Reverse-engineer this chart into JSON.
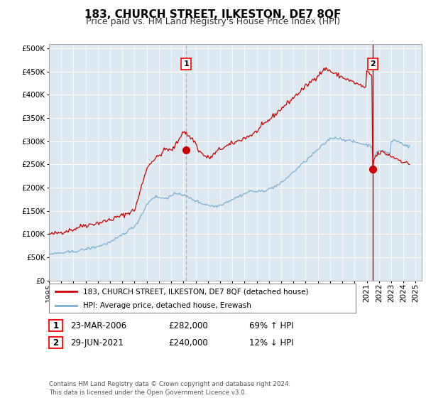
{
  "title": "183, CHURCH STREET, ILKESTON, DE7 8QF",
  "subtitle": "Price paid vs. HM Land Registry's House Price Index (HPI)",
  "ylabel_ticks": [
    0,
    50000,
    100000,
    150000,
    200000,
    250000,
    300000,
    350000,
    400000,
    450000,
    500000
  ],
  "ylim": [
    0,
    510000
  ],
  "xlim_start": 1995.0,
  "xlim_end": 2025.5,
  "point1_x": 2006.22,
  "point1_y": 282000,
  "point1_label": "1",
  "point2_x": 2021.49,
  "point2_y": 240000,
  "point2_label": "2",
  "legend_line1": "183, CHURCH STREET, ILKESTON, DE7 8QF (detached house)",
  "legend_line2": "HPI: Average price, detached house, Erewash",
  "table_row1": [
    "1",
    "23-MAR-2006",
    "£282,000",
    "69% ↑ HPI"
  ],
  "table_row2": [
    "2",
    "29-JUN-2021",
    "£240,000",
    "12% ↓ HPI"
  ],
  "footer": "Contains HM Land Registry data © Crown copyright and database right 2024.\nThis data is licensed under the Open Government Licence v3.0.",
  "red_color": "#cc0000",
  "blue_color": "#7ab0d4",
  "plot_bg_color": "#dde8f0",
  "background_color": "#ffffff",
  "grid_color": "#ffffff",
  "title_fontsize": 11,
  "subtitle_fontsize": 9,
  "tick_fontsize": 7.5,
  "years": [
    1995,
    1996,
    1997,
    1998,
    1999,
    2000,
    2001,
    2002,
    2003,
    2004,
    2005,
    2006,
    2007,
    2008,
    2009,
    2010,
    2011,
    2012,
    2013,
    2014,
    2015,
    2016,
    2017,
    2018,
    2019,
    2020,
    2021,
    2022,
    2023,
    2024,
    2025
  ],
  "red_data_x": [
    1995.0,
    1995.08,
    1995.17,
    1995.25,
    1995.33,
    1995.42,
    1995.5,
    1995.58,
    1995.67,
    1995.75,
    1995.83,
    1995.92,
    1996.0,
    1996.08,
    1996.17,
    1996.25,
    1996.33,
    1996.42,
    1996.5,
    1996.58,
    1996.67,
    1996.75,
    1996.83,
    1996.92,
    1997.0,
    1997.08,
    1997.17,
    1997.25,
    1997.33,
    1997.42,
    1997.5,
    1997.58,
    1997.67,
    1997.75,
    1997.83,
    1997.92,
    1998.0,
    1998.08,
    1998.17,
    1998.25,
    1998.33,
    1998.42,
    1998.5,
    1998.58,
    1998.67,
    1998.75,
    1998.83,
    1998.92,
    1999.0,
    1999.08,
    1999.17,
    1999.25,
    1999.33,
    1999.42,
    1999.5,
    1999.58,
    1999.67,
    1999.75,
    1999.83,
    1999.92,
    2000.0,
    2000.08,
    2000.17,
    2000.25,
    2000.33,
    2000.42,
    2000.5,
    2000.58,
    2000.67,
    2000.75,
    2000.83,
    2000.92,
    2001.0,
    2001.08,
    2001.17,
    2001.25,
    2001.33,
    2001.42,
    2001.5,
    2001.58,
    2001.67,
    2001.75,
    2001.83,
    2001.92,
    2002.0,
    2002.08,
    2002.17,
    2002.25,
    2002.33,
    2002.42,
    2002.5,
    2002.58,
    2002.67,
    2002.75,
    2002.83,
    2002.92,
    2003.0,
    2003.08,
    2003.17,
    2003.25,
    2003.33,
    2003.42,
    2003.5,
    2003.58,
    2003.67,
    2003.75,
    2003.83,
    2003.92,
    2004.0,
    2004.08,
    2004.17,
    2004.25,
    2004.33,
    2004.42,
    2004.5,
    2004.58,
    2004.67,
    2004.75,
    2004.83,
    2004.92,
    2005.0,
    2005.08,
    2005.17,
    2005.25,
    2005.33,
    2005.42,
    2005.5,
    2005.58,
    2005.67,
    2005.75,
    2005.83,
    2005.92,
    2006.0,
    2006.08,
    2006.17,
    2006.22,
    2006.33,
    2006.42,
    2006.5,
    2006.58,
    2006.67,
    2006.75,
    2006.83,
    2006.92,
    2007.0,
    2007.08,
    2007.17,
    2007.25,
    2007.33,
    2007.42,
    2007.5,
    2007.58,
    2007.67,
    2007.75,
    2007.83,
    2007.92,
    2008.0,
    2008.08,
    2008.17,
    2008.25,
    2008.33,
    2008.42,
    2008.5,
    2008.58,
    2008.67,
    2008.75,
    2008.83,
    2008.92,
    2009.0,
    2009.08,
    2009.17,
    2009.25,
    2009.33,
    2009.42,
    2009.5,
    2009.58,
    2009.67,
    2009.75,
    2009.83,
    2009.92,
    2010.0,
    2010.08,
    2010.17,
    2010.25,
    2010.33,
    2010.42,
    2010.5,
    2010.58,
    2010.67,
    2010.75,
    2010.83,
    2010.92,
    2011.0,
    2011.08,
    2011.17,
    2011.25,
    2011.33,
    2011.42,
    2011.5,
    2011.58,
    2011.67,
    2011.75,
    2011.83,
    2011.92,
    2012.0,
    2012.08,
    2012.17,
    2012.25,
    2012.33,
    2012.42,
    2012.5,
    2012.58,
    2012.67,
    2012.75,
    2012.83,
    2012.92,
    2013.0,
    2013.08,
    2013.17,
    2013.25,
    2013.33,
    2013.42,
    2013.5,
    2013.58,
    2013.67,
    2013.75,
    2013.83,
    2013.92,
    2014.0,
    2014.08,
    2014.17,
    2014.25,
    2014.33,
    2014.42,
    2014.5,
    2014.58,
    2014.67,
    2014.75,
    2014.83,
    2014.92,
    2015.0,
    2015.08,
    2015.17,
    2015.25,
    2015.33,
    2015.42,
    2015.5,
    2015.58,
    2015.67,
    2015.75,
    2015.83,
    2015.92,
    2016.0,
    2016.08,
    2016.17,
    2016.25,
    2016.33,
    2016.42,
    2016.5,
    2016.58,
    2016.67,
    2016.75,
    2016.83,
    2016.92,
    2017.0,
    2017.08,
    2017.17,
    2017.25,
    2017.33,
    2017.42,
    2017.5,
    2017.58,
    2017.67,
    2017.75,
    2017.83,
    2017.92,
    2018.0,
    2018.08,
    2018.17,
    2018.25,
    2018.33,
    2018.42,
    2018.5,
    2018.58,
    2018.67,
    2018.75,
    2018.83,
    2018.92,
    2019.0,
    2019.08,
    2019.17,
    2019.25,
    2019.33,
    2019.42,
    2019.5,
    2019.58,
    2019.67,
    2019.75,
    2019.83,
    2019.92,
    2020.0,
    2020.08,
    2020.17,
    2020.25,
    2020.33,
    2020.42,
    2020.5,
    2020.58,
    2020.67,
    2020.75,
    2020.83,
    2020.92,
    2021.0,
    2021.08,
    2021.17,
    2021.25,
    2021.33,
    2021.42,
    2021.49,
    2021.58,
    2021.67,
    2021.75,
    2021.83,
    2021.92,
    2022.0,
    2022.08,
    2022.17,
    2022.25,
    2022.33,
    2022.42,
    2022.5,
    2022.58,
    2022.67,
    2022.75,
    2022.83,
    2022.92,
    2023.0,
    2023.08,
    2023.17,
    2023.25,
    2023.33,
    2023.42,
    2023.5,
    2023.58,
    2023.67,
    2023.75,
    2023.83,
    2023.92,
    2024.0,
    2024.08,
    2024.17,
    2024.25,
    2024.33,
    2024.42,
    2024.5
  ],
  "red_data_y": [
    101000,
    100000,
    99500,
    100000,
    100500,
    101000,
    102000,
    101500,
    102000,
    103000,
    103500,
    104000,
    104000,
    104500,
    105000,
    105500,
    106000,
    107000,
    107500,
    108000,
    108500,
    109000,
    109500,
    110000,
    110000,
    111000,
    112000,
    113000,
    114000,
    115000,
    116000,
    117000,
    117500,
    118000,
    119000,
    120000,
    120000,
    119000,
    119500,
    120000,
    120500,
    121000,
    121500,
    122000,
    122500,
    123000,
    123500,
    124000,
    124000,
    124500,
    125000,
    125500,
    126000,
    127000,
    127500,
    128000,
    128500,
    129000,
    130000,
    131000,
    131000,
    131500,
    132000,
    133000,
    134000,
    135000,
    136000,
    136500,
    137000,
    138000,
    139000,
    140000,
    140500,
    141000,
    142000,
    143000,
    144000,
    145000,
    146000,
    147000,
    148000,
    149000,
    150000,
    151000,
    152000,
    158000,
    165000,
    172000,
    180000,
    188000,
    196000,
    204000,
    212000,
    220000,
    228000,
    236000,
    240000,
    244000,
    248000,
    252000,
    255000,
    257000,
    258000,
    260000,
    262000,
    264000,
    265000,
    267000,
    269000,
    271000,
    273000,
    275000,
    278000,
    280000,
    282000,
    284000,
    283000,
    282000,
    281000,
    280000,
    280000,
    282000,
    285000,
    288000,
    291000,
    294000,
    298000,
    302000,
    306000,
    310000,
    315000,
    320000,
    322000,
    320000,
    318000,
    316000,
    314000,
    312000,
    310000,
    308000,
    306000,
    304000,
    302000,
    300000,
    295000,
    290000,
    285000,
    280000,
    278000,
    276000,
    274000,
    272000,
    270000,
    268000,
    267000,
    266000,
    265000,
    264000,
    265000,
    266000,
    268000,
    270000,
    272000,
    274000,
    276000,
    278000,
    280000,
    282000,
    283000,
    284000,
    285000,
    286000,
    287000,
    288000,
    289000,
    290000,
    291000,
    292000,
    293000,
    294000,
    295000,
    296000,
    297000,
    298000,
    299000,
    300000,
    301000,
    302000,
    303000,
    304000,
    305000,
    306000,
    307000,
    308000,
    309000,
    310000,
    311000,
    312000,
    313000,
    314000,
    315000,
    316000,
    318000,
    320000,
    322000,
    324000,
    326000,
    328000,
    330000,
    332000,
    334000,
    336000,
    338000,
    340000,
    342000,
    344000,
    346000,
    348000,
    350000,
    352000,
    354000,
    356000,
    358000,
    360000,
    362000,
    364000,
    366000,
    368000,
    370000,
    372000,
    374000,
    376000,
    378000,
    380000,
    382000,
    384000,
    386000,
    388000,
    390000,
    392000,
    394000,
    396000,
    398000,
    400000,
    402000,
    404000,
    406000,
    408000,
    410000,
    412000,
    414000,
    416000,
    418000,
    420000,
    422000,
    424000,
    426000,
    428000,
    430000,
    432000,
    434000,
    436000,
    438000,
    440000,
    442000,
    444000,
    446000,
    448000,
    450000,
    452000,
    454000,
    456000,
    456000,
    455000,
    454000,
    453000,
    452000,
    450000,
    448000,
    447000,
    446000,
    445000,
    444000,
    443000,
    442000,
    441000,
    440000,
    439000,
    438000,
    437000,
    436000,
    435000,
    434000,
    433000,
    432000,
    431000,
    430000,
    429000,
    428000,
    427000,
    426000,
    425000,
    424000,
    423000,
    422000,
    421000,
    420000,
    419000,
    418000,
    417000,
    416000,
    415000,
    450000,
    448000,
    446000,
    444000,
    442000,
    440000,
    240000,
    260000,
    265000,
    268000,
    270000,
    272000,
    274000,
    275000,
    276000,
    277000,
    276000,
    275000,
    274000,
    273000,
    272000,
    271000,
    270000,
    269000,
    268000,
    267000,
    266000,
    265000,
    264000,
    263000,
    262000,
    261000,
    260000,
    259000,
    258000,
    257000,
    256000,
    255000,
    254000,
    253000,
    252000,
    251000,
    250000
  ],
  "blue_data_x": [
    1995.0,
    1995.08,
    1995.17,
    1995.25,
    1995.33,
    1995.42,
    1995.5,
    1995.58,
    1995.67,
    1995.75,
    1995.83,
    1995.92,
    1996.0,
    1996.08,
    1996.17,
    1996.25,
    1996.33,
    1996.42,
    1996.5,
    1996.58,
    1996.67,
    1996.75,
    1996.83,
    1996.92,
    1997.0,
    1997.08,
    1997.17,
    1997.25,
    1997.33,
    1997.42,
    1997.5,
    1997.58,
    1997.67,
    1997.75,
    1997.83,
    1997.92,
    1998.0,
    1998.08,
    1998.17,
    1998.25,
    1998.33,
    1998.42,
    1998.5,
    1998.58,
    1998.67,
    1998.75,
    1998.83,
    1998.92,
    1999.0,
    1999.08,
    1999.17,
    1999.25,
    1999.33,
    1999.42,
    1999.5,
    1999.58,
    1999.67,
    1999.75,
    1999.83,
    1999.92,
    2000.0,
    2000.08,
    2000.17,
    2000.25,
    2000.33,
    2000.42,
    2000.5,
    2000.58,
    2000.67,
    2000.75,
    2000.83,
    2000.92,
    2001.0,
    2001.08,
    2001.17,
    2001.25,
    2001.33,
    2001.42,
    2001.5,
    2001.58,
    2001.67,
    2001.75,
    2001.83,
    2001.92,
    2002.0,
    2002.08,
    2002.17,
    2002.25,
    2002.33,
    2002.42,
    2002.5,
    2002.58,
    2002.67,
    2002.75,
    2002.83,
    2002.92,
    2003.0,
    2003.08,
    2003.17,
    2003.25,
    2003.33,
    2003.42,
    2003.5,
    2003.58,
    2003.67,
    2003.75,
    2003.83,
    2003.92,
    2004.0,
    2004.08,
    2004.17,
    2004.25,
    2004.33,
    2004.42,
    2004.5,
    2004.58,
    2004.67,
    2004.75,
    2004.83,
    2004.92,
    2005.0,
    2005.08,
    2005.17,
    2005.25,
    2005.33,
    2005.42,
    2005.5,
    2005.58,
    2005.67,
    2005.75,
    2005.83,
    2005.92,
    2006.0,
    2006.08,
    2006.17,
    2006.25,
    2006.33,
    2006.42,
    2006.5,
    2006.58,
    2006.67,
    2006.75,
    2006.83,
    2006.92,
    2007.0,
    2007.08,
    2007.17,
    2007.25,
    2007.33,
    2007.42,
    2007.5,
    2007.58,
    2007.67,
    2007.75,
    2007.83,
    2007.92,
    2008.0,
    2008.08,
    2008.17,
    2008.25,
    2008.33,
    2008.42,
    2008.5,
    2008.58,
    2008.67,
    2008.75,
    2008.83,
    2008.92,
    2009.0,
    2009.08,
    2009.17,
    2009.25,
    2009.33,
    2009.42,
    2009.5,
    2009.58,
    2009.67,
    2009.75,
    2009.83,
    2009.92,
    2010.0,
    2010.08,
    2010.17,
    2010.25,
    2010.33,
    2010.42,
    2010.5,
    2010.58,
    2010.67,
    2010.75,
    2010.83,
    2010.92,
    2011.0,
    2011.08,
    2011.17,
    2011.25,
    2011.33,
    2011.42,
    2011.5,
    2011.58,
    2011.67,
    2011.75,
    2011.83,
    2011.92,
    2012.0,
    2012.08,
    2012.17,
    2012.25,
    2012.33,
    2012.42,
    2012.5,
    2012.58,
    2012.67,
    2012.75,
    2012.83,
    2012.92,
    2013.0,
    2013.08,
    2013.17,
    2013.25,
    2013.33,
    2013.42,
    2013.5,
    2013.58,
    2013.67,
    2013.75,
    2013.83,
    2013.92,
    2014.0,
    2014.08,
    2014.17,
    2014.25,
    2014.33,
    2014.42,
    2014.5,
    2014.58,
    2014.67,
    2014.75,
    2014.83,
    2014.92,
    2015.0,
    2015.08,
    2015.17,
    2015.25,
    2015.33,
    2015.42,
    2015.5,
    2015.58,
    2015.67,
    2015.75,
    2015.83,
    2015.92,
    2016.0,
    2016.08,
    2016.17,
    2016.25,
    2016.33,
    2016.42,
    2016.5,
    2016.58,
    2016.67,
    2016.75,
    2016.83,
    2016.92,
    2017.0,
    2017.08,
    2017.17,
    2017.25,
    2017.33,
    2017.42,
    2017.5,
    2017.58,
    2017.67,
    2017.75,
    2017.83,
    2017.92,
    2018.0,
    2018.08,
    2018.17,
    2018.25,
    2018.33,
    2018.42,
    2018.5,
    2018.58,
    2018.67,
    2018.75,
    2018.83,
    2018.92,
    2019.0,
    2019.08,
    2019.17,
    2019.25,
    2019.33,
    2019.42,
    2019.5,
    2019.58,
    2019.67,
    2019.75,
    2019.83,
    2019.92,
    2020.0,
    2020.08,
    2020.17,
    2020.25,
    2020.33,
    2020.42,
    2020.5,
    2020.58,
    2020.67,
    2020.75,
    2020.83,
    2020.92,
    2021.0,
    2021.08,
    2021.17,
    2021.25,
    2021.33,
    2021.42,
    2021.49,
    2021.58,
    2021.67,
    2021.75,
    2021.83,
    2021.92,
    2022.0,
    2022.08,
    2022.17,
    2022.25,
    2022.33,
    2022.42,
    2022.5,
    2022.58,
    2022.67,
    2022.75,
    2022.83,
    2022.92,
    2023.0,
    2023.08,
    2023.17,
    2023.25,
    2023.33,
    2023.42,
    2023.5,
    2023.58,
    2023.67,
    2023.75,
    2023.83,
    2023.92,
    2024.0,
    2024.08,
    2024.17,
    2024.25,
    2024.33,
    2024.42,
    2024.5
  ],
  "blue_data_y": [
    57000,
    57200,
    57400,
    57600,
    57800,
    58000,
    58200,
    58400,
    58600,
    58800,
    59000,
    59200,
    59400,
    59600,
    59800,
    60000,
    60200,
    60500,
    60800,
    61000,
    61300,
    61600,
    61900,
    62200,
    62500,
    62800,
    63200,
    63600,
    64000,
    64400,
    64800,
    65200,
    65600,
    66000,
    66500,
    67000,
    67500,
    68000,
    68500,
    69000,
    69500,
    70000,
    70500,
    71000,
    71500,
    72000,
    72500,
    73000,
    73500,
    74000,
    74800,
    75600,
    76400,
    77200,
    78000,
    78800,
    79600,
    80400,
    81200,
    82000,
    82800,
    83600,
    84800,
    86000,
    87200,
    88500,
    90000,
    91500,
    93000,
    94500,
    96000,
    97500,
    99000,
    100500,
    102000,
    103500,
    105000,
    106500,
    108000,
    109500,
    111000,
    112500,
    114000,
    115500,
    117000,
    120000,
    123000,
    126000,
    130000,
    134000,
    138000,
    142000,
    146000,
    150000,
    155000,
    160000,
    163000,
    166000,
    169000,
    172000,
    174000,
    176000,
    178000,
    179000,
    180000,
    180500,
    180000,
    179500,
    179000,
    178500,
    178000,
    177500,
    177000,
    177500,
    178000,
    178500,
    179000,
    179500,
    180000,
    181000,
    182000,
    183000,
    184000,
    185000,
    186000,
    187000,
    188000,
    188500,
    188000,
    187000,
    186000,
    185000,
    184000,
    183000,
    182000,
    181000,
    180000,
    179000,
    178000,
    177000,
    176000,
    175000,
    174000,
    173000,
    172000,
    171000,
    170000,
    169000,
    168000,
    167000,
    166000,
    165500,
    165000,
    164500,
    164000,
    163500,
    163000,
    162500,
    162000,
    161500,
    161000,
    160500,
    160000,
    160000,
    160000,
    160500,
    161000,
    162000,
    163000,
    164000,
    165000,
    166000,
    167000,
    168000,
    169000,
    170000,
    171000,
    172000,
    173000,
    174000,
    175000,
    176000,
    177000,
    178000,
    179000,
    180000,
    181000,
    182000,
    183000,
    184000,
    185000,
    186000,
    187000,
    188000,
    189000,
    190000,
    191000,
    192000,
    193000,
    193500,
    193000,
    192500,
    192000,
    191500,
    191000,
    191000,
    191500,
    192000,
    192500,
    193000,
    193500,
    194000,
    194500,
    195000,
    195500,
    196000,
    197000,
    198000,
    199000,
    200000,
    201000,
    202000,
    203000,
    204000,
    205000,
    206000,
    207000,
    208000,
    210000,
    212000,
    214000,
    216000,
    218000,
    220000,
    222000,
    224000,
    226000,
    228000,
    230000,
    232000,
    234000,
    236000,
    238000,
    240000,
    242000,
    244000,
    246000,
    248000,
    250000,
    252000,
    254000,
    256000,
    258000,
    260000,
    262000,
    264000,
    266000,
    268000,
    270000,
    272000,
    274000,
    276000,
    278000,
    280000,
    282000,
    284000,
    286000,
    288000,
    290000,
    292000,
    294000,
    296000,
    298000,
    300000,
    302000,
    304000,
    305000,
    306000,
    307000,
    307500,
    308000,
    308000,
    307500,
    307000,
    306500,
    306000,
    305500,
    305000,
    304500,
    304000,
    303500,
    303000,
    302500,
    302000,
    301500,
    301000,
    300500,
    300000,
    299500,
    299000,
    298500,
    298000,
    297500,
    297000,
    296500,
    296000,
    295500,
    295000,
    294500,
    294000,
    293500,
    293000,
    292500,
    292000,
    291500,
    291000,
    290500,
    290000,
    260000,
    270000,
    272000,
    274000,
    275000,
    276000,
    278000,
    279000,
    280000,
    281000,
    280000,
    279000,
    278000,
    277000,
    276000,
    275000,
    274000,
    273000,
    298000,
    300000,
    302000,
    303000,
    302000,
    301000,
    300000,
    299000,
    298000,
    297000,
    296000,
    295000,
    294000,
    293000,
    292000,
    291000,
    290000,
    289000,
    288000
  ]
}
